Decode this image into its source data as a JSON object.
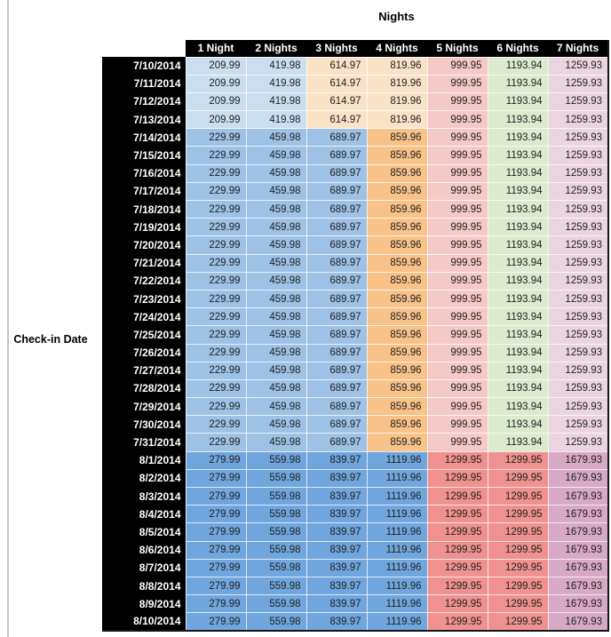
{
  "chart_data": {
    "type": "table",
    "title": "Nights",
    "row_axis_label": "Check-in Date",
    "columns": [
      "1 Night",
      "2 Nights",
      "3 Nights",
      "4 Nights",
      "5 Nights",
      "6 Nights",
      "7 Nights"
    ],
    "rows": [
      {
        "date": "7/10/2014",
        "tier": "low",
        "values": [
          209.99,
          419.98,
          614.97,
          819.96,
          999.95,
          1193.94,
          1259.93
        ]
      },
      {
        "date": "7/11/2014",
        "tier": "low",
        "values": [
          209.99,
          419.98,
          614.97,
          819.96,
          999.95,
          1193.94,
          1259.93
        ]
      },
      {
        "date": "7/12/2014",
        "tier": "low",
        "values": [
          209.99,
          419.98,
          614.97,
          819.96,
          999.95,
          1193.94,
          1259.93
        ]
      },
      {
        "date": "7/13/2014",
        "tier": "low",
        "values": [
          209.99,
          419.98,
          614.97,
          819.96,
          999.95,
          1193.94,
          1259.93
        ]
      },
      {
        "date": "7/14/2014",
        "tier": "mid",
        "values": [
          229.99,
          459.98,
          689.97,
          859.96,
          999.95,
          1193.94,
          1259.93
        ]
      },
      {
        "date": "7/15/2014",
        "tier": "mid",
        "values": [
          229.99,
          459.98,
          689.97,
          859.96,
          999.95,
          1193.94,
          1259.93
        ]
      },
      {
        "date": "7/16/2014",
        "tier": "mid",
        "values": [
          229.99,
          459.98,
          689.97,
          859.96,
          999.95,
          1193.94,
          1259.93
        ]
      },
      {
        "date": "7/17/2014",
        "tier": "mid",
        "values": [
          229.99,
          459.98,
          689.97,
          859.96,
          999.95,
          1193.94,
          1259.93
        ]
      },
      {
        "date": "7/18/2014",
        "tier": "mid",
        "values": [
          229.99,
          459.98,
          689.97,
          859.96,
          999.95,
          1193.94,
          1259.93
        ]
      },
      {
        "date": "7/19/2014",
        "tier": "mid",
        "values": [
          229.99,
          459.98,
          689.97,
          859.96,
          999.95,
          1193.94,
          1259.93
        ]
      },
      {
        "date": "7/20/2014",
        "tier": "mid",
        "values": [
          229.99,
          459.98,
          689.97,
          859.96,
          999.95,
          1193.94,
          1259.93
        ]
      },
      {
        "date": "7/21/2014",
        "tier": "mid",
        "values": [
          229.99,
          459.98,
          689.97,
          859.96,
          999.95,
          1193.94,
          1259.93
        ]
      },
      {
        "date": "7/22/2014",
        "tier": "mid",
        "values": [
          229.99,
          459.98,
          689.97,
          859.96,
          999.95,
          1193.94,
          1259.93
        ]
      },
      {
        "date": "7/23/2014",
        "tier": "mid",
        "values": [
          229.99,
          459.98,
          689.97,
          859.96,
          999.95,
          1193.94,
          1259.93
        ]
      },
      {
        "date": "7/24/2014",
        "tier": "mid",
        "values": [
          229.99,
          459.98,
          689.97,
          859.96,
          999.95,
          1193.94,
          1259.93
        ]
      },
      {
        "date": "7/25/2014",
        "tier": "mid",
        "values": [
          229.99,
          459.98,
          689.97,
          859.96,
          999.95,
          1193.94,
          1259.93
        ]
      },
      {
        "date": "7/26/2014",
        "tier": "mid",
        "values": [
          229.99,
          459.98,
          689.97,
          859.96,
          999.95,
          1193.94,
          1259.93
        ]
      },
      {
        "date": "7/27/2014",
        "tier": "mid",
        "values": [
          229.99,
          459.98,
          689.97,
          859.96,
          999.95,
          1193.94,
          1259.93
        ]
      },
      {
        "date": "7/28/2014",
        "tier": "mid",
        "values": [
          229.99,
          459.98,
          689.97,
          859.96,
          999.95,
          1193.94,
          1259.93
        ]
      },
      {
        "date": "7/29/2014",
        "tier": "mid",
        "values": [
          229.99,
          459.98,
          689.97,
          859.96,
          999.95,
          1193.94,
          1259.93
        ]
      },
      {
        "date": "7/30/2014",
        "tier": "mid",
        "values": [
          229.99,
          459.98,
          689.97,
          859.96,
          999.95,
          1193.94,
          1259.93
        ]
      },
      {
        "date": "7/31/2014",
        "tier": "mid",
        "values": [
          229.99,
          459.98,
          689.97,
          859.96,
          999.95,
          1193.94,
          1259.93
        ]
      },
      {
        "date": "8/1/2014",
        "tier": "high",
        "values": [
          279.99,
          559.98,
          839.97,
          1119.96,
          1299.95,
          1299.95,
          1679.93
        ]
      },
      {
        "date": "8/2/2014",
        "tier": "high",
        "values": [
          279.99,
          559.98,
          839.97,
          1119.96,
          1299.95,
          1299.95,
          1679.93
        ]
      },
      {
        "date": "8/3/2014",
        "tier": "high",
        "values": [
          279.99,
          559.98,
          839.97,
          1119.96,
          1299.95,
          1299.95,
          1679.93
        ]
      },
      {
        "date": "8/4/2014",
        "tier": "high",
        "values": [
          279.99,
          559.98,
          839.97,
          1119.96,
          1299.95,
          1299.95,
          1679.93
        ]
      },
      {
        "date": "8/5/2014",
        "tier": "high",
        "values": [
          279.99,
          559.98,
          839.97,
          1119.96,
          1299.95,
          1299.95,
          1679.93
        ]
      },
      {
        "date": "8/6/2014",
        "tier": "high",
        "values": [
          279.99,
          559.98,
          839.97,
          1119.96,
          1299.95,
          1299.95,
          1679.93
        ]
      },
      {
        "date": "8/7/2014",
        "tier": "high",
        "values": [
          279.99,
          559.98,
          839.97,
          1119.96,
          1299.95,
          1299.95,
          1679.93
        ]
      },
      {
        "date": "8/8/2014",
        "tier": "high",
        "values": [
          279.99,
          559.98,
          839.97,
          1119.96,
          1299.95,
          1299.95,
          1679.93
        ]
      },
      {
        "date": "8/9/2014",
        "tier": "high",
        "values": [
          279.99,
          559.98,
          839.97,
          1119.96,
          1299.95,
          1299.95,
          1679.93
        ]
      },
      {
        "date": "8/10/2014",
        "tier": "high",
        "values": [
          279.99,
          559.98,
          839.97,
          1119.96,
          1299.95,
          1299.95,
          1679.93
        ]
      }
    ]
  },
  "styles": {
    "header_bg": "#000000",
    "header_text": "#FFFFFF",
    "value_text": "#1F1F1F",
    "outer_border": "#161616",
    "left_rule": "#C4C4C4",
    "tier_colors": {
      "low": [
        "#CBDEF0",
        "#CBDEF0",
        "#FAE2C6",
        "#FAE2C6",
        "#F5C9C5",
        "#DCEACE",
        "#EBD4E0"
      ],
      "mid": [
        "#9DC2E6",
        "#9DC2E6",
        "#9DC2E6",
        "#F8C289",
        "#F5C9C5",
        "#DCEACE",
        "#EBD4E0"
      ],
      "high": [
        "#70A6DD",
        "#70A6DD",
        "#70A6DD",
        "#70A6DD",
        "#EF928F",
        "#EF928F",
        "#D8A9C4"
      ]
    }
  }
}
